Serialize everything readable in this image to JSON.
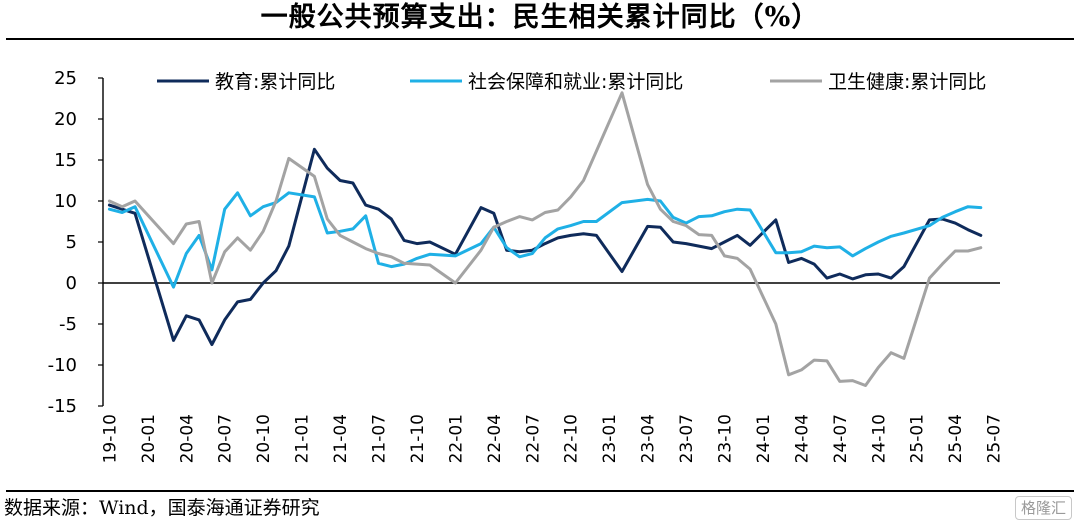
{
  "title": "一般公共预算支出：民生相关累计同比（%）",
  "source": "数据来源：Wind，国泰海通证券研究",
  "watermark": "格隆汇",
  "chart_data": {
    "type": "line",
    "title": "一般公共预算支出：民生相关累计同比（%）",
    "ylim": [
      -15,
      25
    ],
    "yticks": [
      -15,
      -10,
      -5,
      0,
      5,
      10,
      15,
      20,
      25
    ],
    "grid": false,
    "legend": "top",
    "x_tick_labels": [
      "19-10",
      "20-01",
      "20-04",
      "20-07",
      "20-10",
      "21-01",
      "21-04",
      "21-07",
      "21-10",
      "22-01",
      "22-04",
      "22-07",
      "22-10",
      "23-01",
      "23-04",
      "23-07",
      "23-10",
      "24-01",
      "24-04",
      "24-07",
      "24-10",
      "25-01",
      "25-04",
      "25-07"
    ],
    "x": [
      "19-10",
      "19-11",
      "19-12",
      "20-01",
      "20-02",
      "20-03",
      "20-04",
      "20-05",
      "20-06",
      "20-07",
      "20-08",
      "20-09",
      "20-10",
      "20-11",
      "20-12",
      "21-01",
      "21-02",
      "21-03",
      "21-04",
      "21-05",
      "21-06",
      "21-07",
      "21-08",
      "21-09",
      "21-10",
      "21-11",
      "21-12",
      "22-01",
      "22-02",
      "22-03",
      "22-04",
      "22-05",
      "22-06",
      "22-07",
      "22-08",
      "22-09",
      "22-10",
      "22-11",
      "22-12",
      "23-01",
      "23-02",
      "23-03",
      "23-04",
      "23-05",
      "23-06",
      "23-07",
      "23-08",
      "23-09",
      "23-10",
      "23-11",
      "23-12",
      "24-01",
      "24-02",
      "24-03",
      "24-04",
      "24-05",
      "24-06",
      "24-07",
      "24-08",
      "24-09",
      "24-10",
      "24-11",
      "24-12",
      "25-01",
      "25-02",
      "25-03",
      "25-04",
      "25-05",
      "25-06",
      "25-07"
    ],
    "series": [
      {
        "name": "教育:累计同比",
        "color": "#0f2b5b",
        "values": [
          9.5,
          9.0,
          8.5,
          null,
          null,
          -7.0,
          -4.0,
          -4.5,
          -7.5,
          -4.5,
          -2.3,
          -2.0,
          0,
          1.5,
          4.5,
          null,
          16.3,
          14.0,
          12.5,
          12.2,
          9.5,
          9.0,
          7.8,
          5.2,
          4.8,
          5.0,
          null,
          3.5,
          null,
          9.2,
          8.5,
          4.0,
          3.8,
          4.0,
          4.8,
          5.5,
          5.8,
          6.0,
          5.8,
          null,
          1.4,
          null,
          6.9,
          6.8,
          5.0,
          4.8,
          4.5,
          4.2,
          5.0,
          5.8,
          4.6,
          null,
          7.7,
          2.5,
          3.0,
          2.3,
          0.6,
          1.1,
          0.5,
          1.0,
          1.1,
          0.6,
          2.0,
          null,
          7.7,
          7.8,
          7.3,
          6.5,
          5.8,
          null
        ]
      },
      {
        "name": "社会保障和就业:累计同比",
        "color": "#1fb0e6",
        "values": [
          9.0,
          8.6,
          9.3,
          null,
          null,
          -0.5,
          3.6,
          5.8,
          1.6,
          9.0,
          11.0,
          8.2,
          9.3,
          9.8,
          11.0,
          null,
          10.5,
          6.1,
          6.3,
          6.6,
          8.2,
          2.4,
          2.0,
          2.3,
          3.0,
          3.5,
          null,
          3.3,
          null,
          4.8,
          6.8,
          4.3,
          3.2,
          3.6,
          5.5,
          6.6,
          7.0,
          7.5,
          7.5,
          null,
          9.8,
          null,
          10.2,
          10.0,
          8.0,
          7.3,
          8.1,
          8.2,
          8.7,
          9.0,
          8.9,
          null,
          3.7,
          3.7,
          3.8,
          4.5,
          4.3,
          4.4,
          3.3,
          4.2,
          5.0,
          5.7,
          6.1,
          null,
          7.0,
          8.0,
          8.7,
          9.3,
          9.2,
          null
        ]
      },
      {
        "name": "卫生健康:累计同比",
        "color": "#a3a3a3",
        "values": [
          10.0,
          9.3,
          10.0,
          null,
          null,
          4.8,
          7.2,
          7.5,
          0,
          3.8,
          5.5,
          4.0,
          6.3,
          10.0,
          15.2,
          null,
          13.0,
          7.8,
          5.8,
          5.0,
          4.2,
          3.6,
          3.2,
          2.4,
          2.3,
          2.2,
          null,
          0,
          null,
          4.0,
          6.8,
          7.5,
          8.1,
          7.7,
          8.6,
          8.9,
          10.5,
          12.5,
          null,
          null,
          23.2,
          null,
          12.0,
          9.0,
          7.5,
          7.0,
          5.9,
          5.8,
          3.3,
          3.0,
          1.7,
          null,
          -5.0,
          -11.2,
          -10.6,
          -9.4,
          -9.5,
          -12.0,
          -11.9,
          -12.5,
          -10.3,
          -8.5,
          -9.2,
          null,
          0.6,
          2.3,
          3.9,
          3.9,
          4.3,
          null
        ]
      }
    ]
  }
}
